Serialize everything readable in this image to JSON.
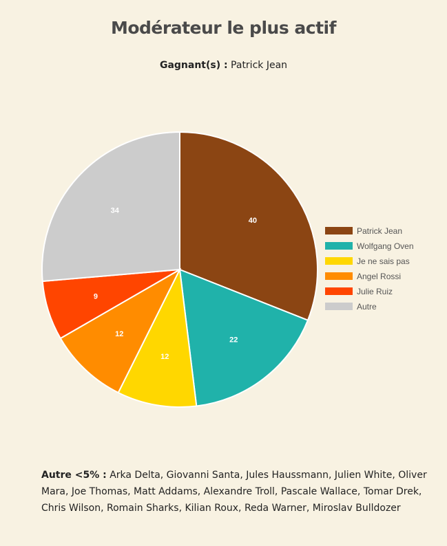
{
  "title": "Modérateur le plus actif",
  "winner": {
    "label": "Gagnant(s) :",
    "value": "Patrick Jean"
  },
  "chart_data": {
    "type": "pie",
    "categories": [
      "Patrick Jean",
      "Wolfgang Oven",
      "Je ne sais pas",
      "Angel Rossi",
      "Julie Ruiz",
      "Autre"
    ],
    "values": [
      40,
      22,
      12,
      12,
      9,
      34
    ],
    "colors": [
      "#8b4513",
      "#20b2aa",
      "#ffd700",
      "#ff8c00",
      "#ff4500",
      "#cccccc"
    ],
    "legend_position": "right",
    "start_angle_deg": 0,
    "direction": "clockwise"
  },
  "others": {
    "label": "Autre <5% :",
    "names": "Arka Delta, Giovanni Santa, Jules Haussmann, Julien White, Oliver Mara, Joe Thomas, Matt Addams, Alexandre Troll, Pascale Wallace, Tomar Drek, Chris Wilson, Romain Sharks, Kilian Roux, Reda Warner, Miroslav Bulldozer"
  }
}
